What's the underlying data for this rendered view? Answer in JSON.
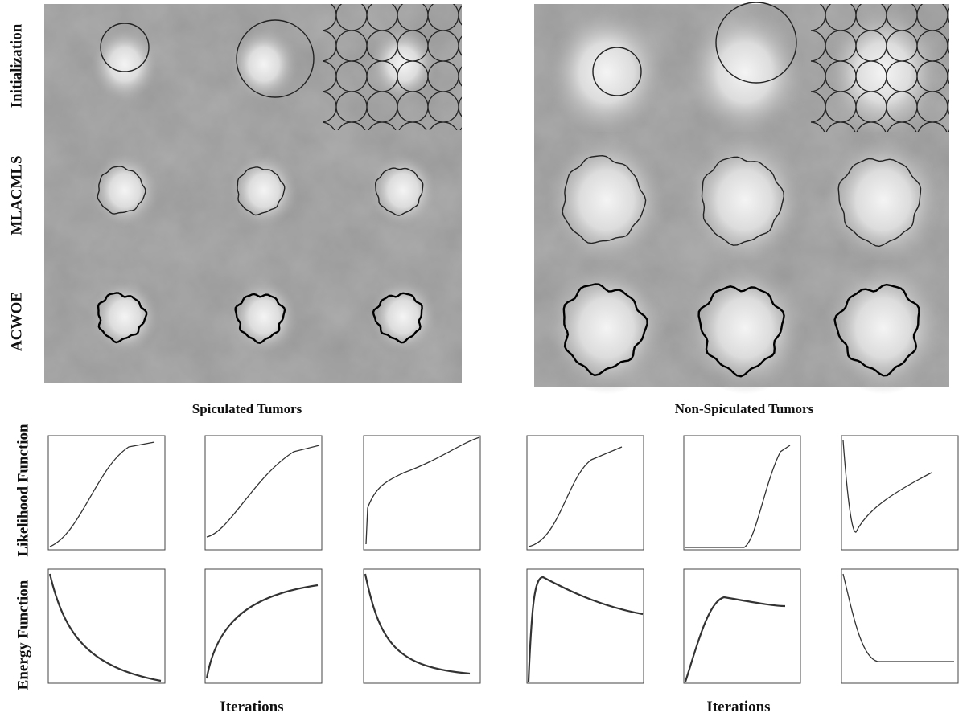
{
  "figure": {
    "row_labels": [
      "Initialization",
      "MLACMLS",
      "ACWOE"
    ],
    "groups": [
      "Spiculated Tumors",
      "Non-Spiculated Tumors"
    ],
    "plot_row_labels": [
      "Likelihood Function",
      "Energy Function"
    ],
    "x_label": "Iterations"
  }
}
